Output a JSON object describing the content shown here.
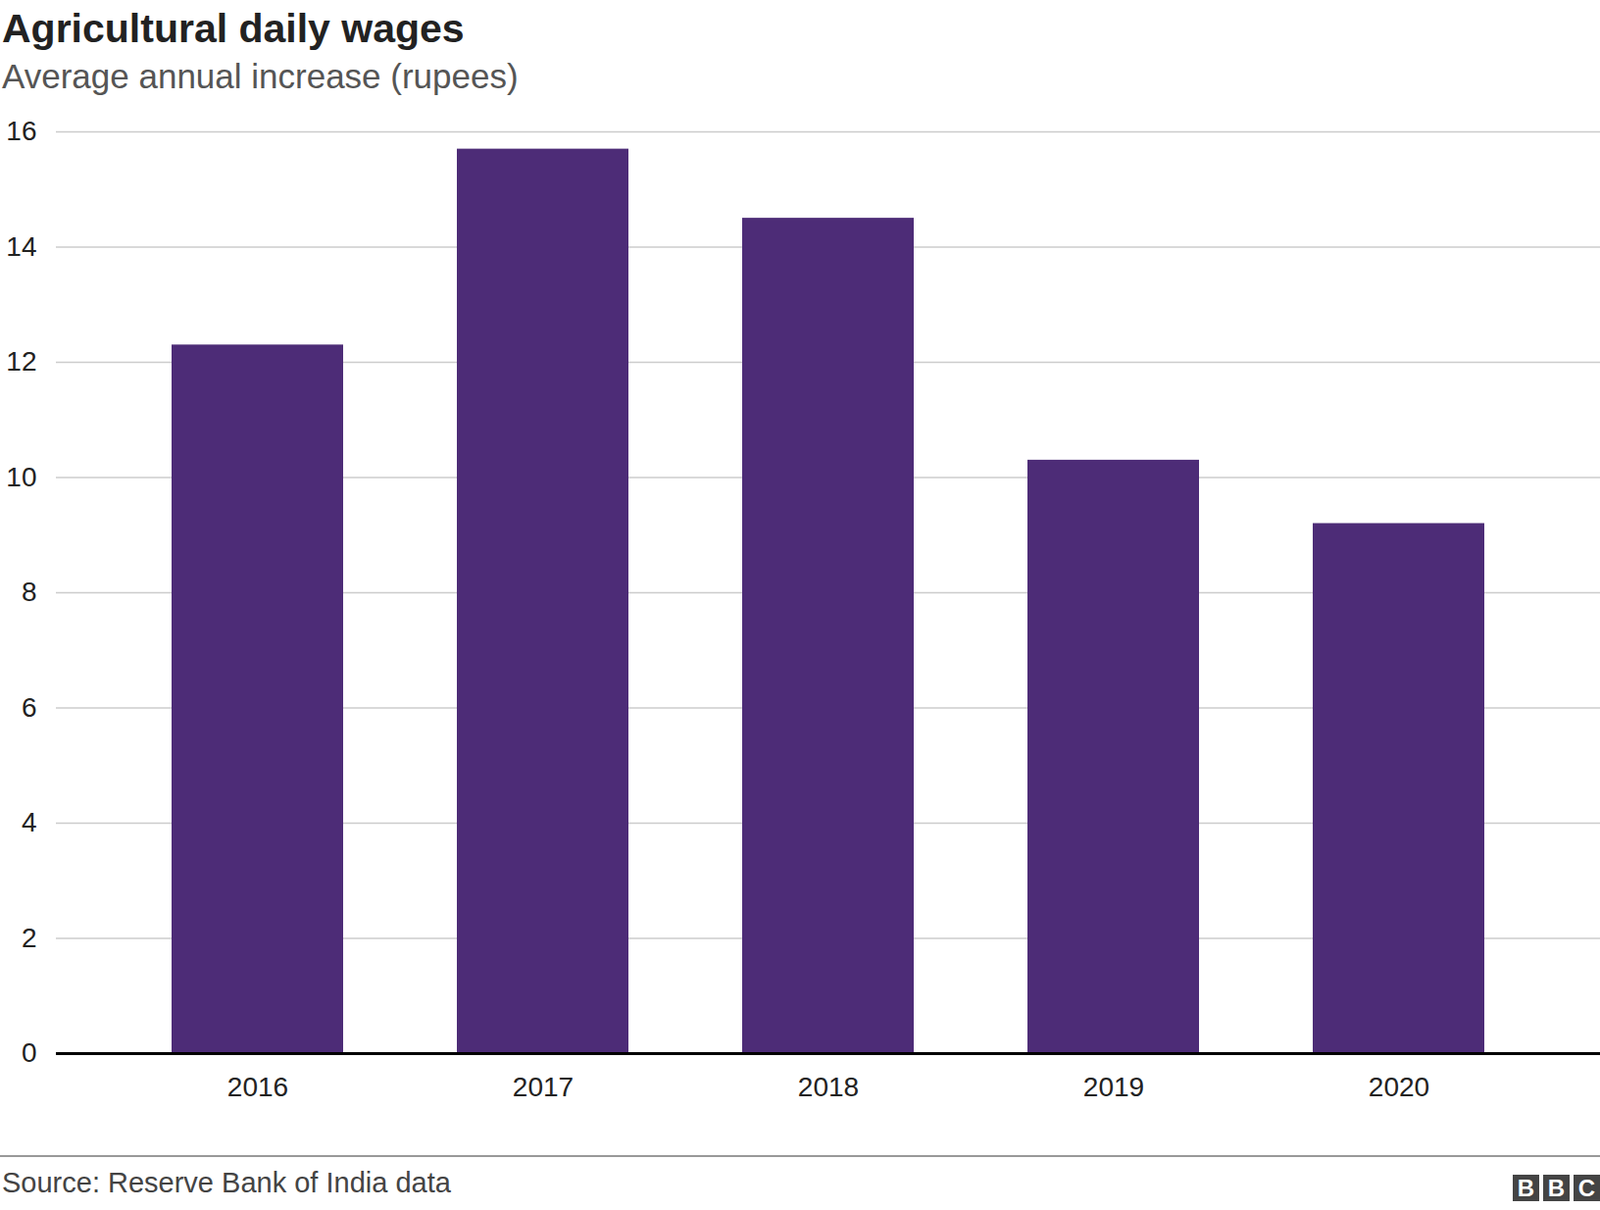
{
  "chart_data": {
    "type": "bar",
    "title": "Agricultural daily wages",
    "subtitle": "Average annual increase (rupees)",
    "categories": [
      "2016",
      "2017",
      "2018",
      "2019",
      "2020"
    ],
    "values": [
      12.3,
      15.7,
      14.5,
      10.3,
      9.2
    ],
    "color": "#4d2c77",
    "ylim": [
      0,
      16
    ],
    "yticks": [
      0,
      2,
      4,
      6,
      8,
      10,
      12,
      14,
      16
    ],
    "grid": true,
    "source": "Source: Reserve Bank of India data",
    "logo": "BBC"
  }
}
